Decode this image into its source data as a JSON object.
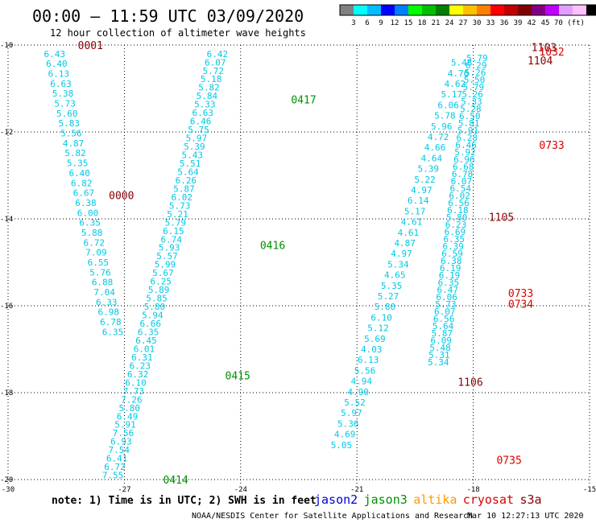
{
  "header": {
    "title": "00:00 – 11:59 UTC 03/09/2020",
    "subtitle": "12 hour collection of altimeter wave heights"
  },
  "colorbar": {
    "colors": [
      "#808080",
      "#00ffff",
      "#00bfff",
      "#0000ff",
      "#0080ff",
      "#00ff00",
      "#00c000",
      "#008000",
      "#ffff00",
      "#ffc000",
      "#ff8000",
      "#ff0000",
      "#c00000",
      "#800000",
      "#800080",
      "#c000ff",
      "#e0a0ff",
      "#ffc0ff",
      "#000000"
    ],
    "labels": [
      "3",
      "6",
      "9",
      "12",
      "15",
      "18",
      "21",
      "24",
      "27",
      "30",
      "33",
      "36",
      "39",
      "42",
      "45",
      "70 (ft)"
    ]
  },
  "footer": {
    "note": "note:  1) Time is in UTC;  2) SWH is in feet",
    "credit": "NOAA/NESDIS Center for Satellite Applications and Research",
    "timestamp": "Mar 10 12:27:13 UTC 2020",
    "satellites": [
      {
        "name": "jason2",
        "color": "#0000dd"
      },
      {
        "name": "jason3",
        "color": "#009000"
      },
      {
        "name": "altika",
        "color": "#ff9900"
      },
      {
        "name": "cryosat",
        "color": "#dd0000"
      },
      {
        "name": "s3a",
        "color": "#880000"
      }
    ]
  },
  "chart_data": {
    "type": "scatter",
    "title": "00:00 – 11:59 UTC 03/09/2020",
    "subtitle": "12 hour collection of altimeter wave heights",
    "xlim": [
      -30,
      -15
    ],
    "ylim": [
      -20,
      -10
    ],
    "xticks": [
      "-30",
      "-27",
      "-24",
      "-21",
      "-18",
      "-15"
    ],
    "yticks": [
      "-10",
      "-12",
      "-14",
      "-16",
      "-18",
      "-20"
    ],
    "value_color": "#00c8e6",
    "tracks": [
      {
        "start": [
          -28.8,
          -10.2
        ],
        "end": [
          -27.3,
          -16.6
        ],
        "values": [
          "6.43",
          "6.40",
          "6.13",
          "6.63",
          "5.38",
          "5.73",
          "5.60",
          "5.83",
          "5.56",
          "4.87",
          "5.82",
          "5.35",
          "6.40",
          "6.82",
          "6.67",
          "6.38",
          "6.00",
          "6.35",
          "5.88",
          "6.72",
          "7.09",
          "6.55",
          "5.76",
          "6.88",
          "7.04",
          "6.33",
          "6.98",
          "6.78",
          "6.35"
        ]
      },
      {
        "start": [
          -24.6,
          -10.2
        ],
        "end": [
          -27.3,
          -19.9
        ],
        "values": [
          "6.42",
          "6.07",
          "5.72",
          "5.18",
          "5.82",
          "5.84",
          "5.33",
          "6.63",
          "6.46",
          "5.75",
          "5.97",
          "5.39",
          "5.43",
          "5.51",
          "5.64",
          "6.26",
          "5.87",
          "6.02",
          "5.73",
          "5.21",
          "5.79",
          "6.15",
          "6.74",
          "5.93",
          "5.57",
          "5.99",
          "5.67",
          "6.25",
          "5.89",
          "5.85",
          "5.80",
          "5.94",
          "6.66",
          "6.35",
          "6.45",
          "6.01",
          "6.31",
          "6.23",
          "6.32",
          "6.10",
          "7.73",
          "7.26",
          "5.80",
          "6.49",
          "5.91",
          "7.56",
          "6.93",
          "7.54",
          "6.41",
          "6.72",
          "7.55"
        ]
      },
      {
        "start": [
          -17.9,
          -10.3
        ],
        "end": [
          -18.9,
          -17.3
        ],
        "values": [
          "5.79",
          "6.29",
          "5.26",
          "5.50",
          "5.79",
          "5.26",
          "5.33",
          "5.28",
          "6.50",
          "5.81",
          "5.91",
          "6.28",
          "6.46",
          "5.92",
          "6.96",
          "6.68",
          "6.78",
          "6.07",
          "6.54",
          "6.02",
          "6.56",
          "6.18",
          "5.80",
          "6.23",
          "6.69",
          "6.35",
          "6.39",
          "6.59",
          "6.38",
          "6.19",
          "6.19",
          "6.35",
          "6.47",
          "6.06",
          "5.73",
          "6.07",
          "6.56",
          "5.64",
          "5.87",
          "6.09",
          "5.48",
          "5.31",
          "5.34"
        ]
      },
      {
        "start": [
          -18.3,
          -10.4
        ],
        "end": [
          -21.4,
          -19.2
        ],
        "values": [
          "5.48",
          "4.76",
          "4.62",
          "5.17",
          "6.06",
          "5.78",
          "5.96",
          "4.72",
          "4.66",
          "4.64",
          "5.39",
          "5.22",
          "4.97",
          "6.14",
          "5.17",
          "4.61",
          "4.61",
          "4.87",
          "4.97",
          "5.34",
          "4.65",
          "5.35",
          "5.27",
          "5.80",
          "6.10",
          "5.12",
          "5.69",
          "4.03",
          "6.13",
          "5.56",
          "4.94",
          "4.90",
          "5.52",
          "5.97",
          "5.36",
          "4.69",
          "5.05"
        ]
      }
    ],
    "time_labels": [
      {
        "text": "0001",
        "x": -28.2,
        "y": -10.0,
        "color": "#880000"
      },
      {
        "text": "0000",
        "x": -27.4,
        "y": -13.45,
        "color": "#880000"
      },
      {
        "text": "0417",
        "x": -22.7,
        "y": -11.25,
        "color": "#009000"
      },
      {
        "text": "0416",
        "x": -23.5,
        "y": -14.6,
        "color": "#009000"
      },
      {
        "text": "0415",
        "x": -24.4,
        "y": -17.6,
        "color": "#009000"
      },
      {
        "text": "0414",
        "x": -26.0,
        "y": -20.0,
        "color": "#009000"
      },
      {
        "text": "1103",
        "x": -16.5,
        "y": -10.05,
        "color": "#880000"
      },
      {
        "text": "1032",
        "x": -16.3,
        "y": -10.15,
        "color": "#dd0000"
      },
      {
        "text": "1104",
        "x": -16.6,
        "y": -10.35,
        "color": "#880000"
      },
      {
        "text": "0733",
        "x": -16.3,
        "y": -12.3,
        "color": "#dd0000"
      },
      {
        "text": "1105",
        "x": -17.6,
        "y": -13.95,
        "color": "#880000"
      },
      {
        "text": "0733",
        "x": -17.1,
        "y": -15.7,
        "color": "#dd0000"
      },
      {
        "text": "0734",
        "x": -17.1,
        "y": -15.95,
        "color": "#dd0000"
      },
      {
        "text": "1106",
        "x": -18.4,
        "y": -17.75,
        "color": "#880000"
      },
      {
        "text": "0735",
        "x": -17.4,
        "y": -19.55,
        "color": "#dd0000"
      }
    ]
  }
}
